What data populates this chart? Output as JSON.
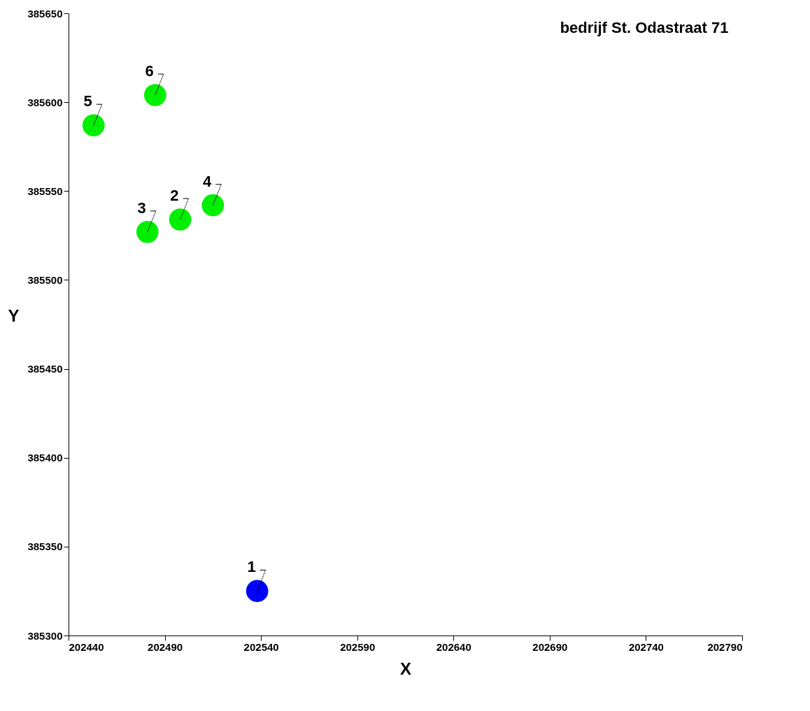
{
  "chart_data": {
    "type": "scatter",
    "title": "bedrijf St. Odastraat 71",
    "xlabel": "X",
    "ylabel": "Y",
    "xlim": [
      202440,
      202790
    ],
    "xticks": [
      202440,
      202490,
      202540,
      202590,
      202640,
      202690,
      202740,
      202790
    ],
    "ylim": [
      385300,
      385650
    ],
    "yticks": [
      385300,
      385350,
      385400,
      385450,
      385500,
      385550,
      385600,
      385650
    ],
    "grid": false,
    "legend": false,
    "marker": "circle",
    "series": [
      {
        "color": "#0000ff",
        "x": [
          202538
        ],
        "values": [
          385325
        ]
      },
      {
        "color": "#00ee00",
        "x": [
          202498,
          202481,
          202515,
          202453,
          202485
        ],
        "values": [
          385534,
          385527,
          385542,
          385587,
          385604
        ]
      }
    ],
    "annotations": [
      {
        "text": "1",
        "x": 202538,
        "y": 385325
      },
      {
        "text": "2",
        "x": 202498,
        "y": 385534
      },
      {
        "text": "3",
        "x": 202481,
        "y": 385527
      },
      {
        "text": "4",
        "x": 202515,
        "y": 385542
      },
      {
        "text": "5",
        "x": 202453,
        "y": 385587
      },
      {
        "text": "6",
        "x": 202485,
        "y": 385604
      }
    ]
  }
}
